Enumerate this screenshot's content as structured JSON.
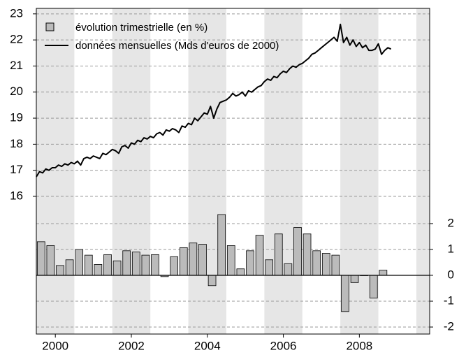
{
  "chart_data": {
    "type": "combo",
    "xlim": [
      2000,
      2010.35
    ],
    "xticks": [
      {
        "value": 2000.5,
        "label": "2000"
      },
      {
        "value": 2002.5,
        "label": "2002"
      },
      {
        "value": 2004.5,
        "label": "2004"
      },
      {
        "value": 2006.5,
        "label": "2006"
      },
      {
        "value": 2008.5,
        "label": "2008"
      }
    ],
    "ylim": [
      10.72,
      23.21
    ],
    "yticks": [
      16,
      17,
      18,
      19,
      20,
      21,
      22,
      23
    ],
    "y2lim": [
      -2.27,
      10.32
    ],
    "y2ticks": [
      -2,
      -1,
      0,
      1,
      2
    ],
    "grid": true,
    "legend": "top-left",
    "series": [
      {
        "name": "évolution trimestrielle (en %)",
        "type": "bar",
        "axis": "y2",
        "color": "#bbbbbb",
        "x": [
          2000.125,
          2000.375,
          2000.625,
          2000.875,
          2001.125,
          2001.375,
          2001.625,
          2001.875,
          2002.125,
          2002.375,
          2002.625,
          2002.875,
          2003.125,
          2003.375,
          2003.625,
          2003.875,
          2004.125,
          2004.375,
          2004.625,
          2004.875,
          2005.125,
          2005.375,
          2005.625,
          2005.875,
          2006.125,
          2006.375,
          2006.625,
          2006.875,
          2007.125,
          2007.375,
          2007.625,
          2007.875,
          2008.125,
          2008.375,
          2008.625,
          2008.875,
          2009.125
        ],
        "values": [
          1.3,
          1.15,
          0.38,
          0.6,
          1.0,
          0.78,
          0.42,
          0.8,
          0.56,
          0.95,
          0.9,
          0.78,
          0.8,
          -0.05,
          0.72,
          1.07,
          1.25,
          1.2,
          -0.4,
          2.35,
          1.15,
          0.25,
          0.95,
          1.55,
          0.6,
          1.6,
          0.45,
          1.85,
          1.6,
          0.95,
          0.85,
          0.78,
          -1.4,
          -0.28,
          0,
          -0.88,
          0.2
        ]
      },
      {
        "name": "données mensuelles (Mds d'euros de 2000)",
        "type": "line",
        "color": "#000000",
        "x": [
          2000,
          2000.083,
          2000.167,
          2000.25,
          2000.333,
          2000.417,
          2000.5,
          2000.583,
          2000.667,
          2000.75,
          2000.833,
          2000.917,
          2001,
          2001.083,
          2001.167,
          2001.25,
          2001.333,
          2001.417,
          2001.5,
          2001.583,
          2001.667,
          2001.75,
          2001.833,
          2001.917,
          2002,
          2002.083,
          2002.167,
          2002.25,
          2002.333,
          2002.417,
          2002.5,
          2002.583,
          2002.667,
          2002.75,
          2002.833,
          2002.917,
          2003,
          2003.083,
          2003.167,
          2003.25,
          2003.333,
          2003.417,
          2003.5,
          2003.583,
          2003.667,
          2003.75,
          2003.833,
          2003.917,
          2004,
          2004.083,
          2004.167,
          2004.25,
          2004.333,
          2004.417,
          2004.5,
          2004.583,
          2004.667,
          2004.75,
          2004.833,
          2004.917,
          2005,
          2005.083,
          2005.167,
          2005.25,
          2005.333,
          2005.417,
          2005.5,
          2005.583,
          2005.667,
          2005.75,
          2005.833,
          2005.917,
          2006,
          2006.083,
          2006.167,
          2006.25,
          2006.333,
          2006.417,
          2006.5,
          2006.583,
          2006.667,
          2006.75,
          2006.833,
          2006.917,
          2007,
          2007.083,
          2007.167,
          2007.25,
          2007.333,
          2007.417,
          2007.5,
          2007.583,
          2007.667,
          2007.75,
          2007.833,
          2007.917,
          2008,
          2008.083,
          2008.167,
          2008.25,
          2008.333,
          2008.417,
          2008.5,
          2008.583,
          2008.667,
          2008.75,
          2008.833,
          2008.917,
          2009,
          2009.083,
          2009.167,
          2009.25,
          2009.333
        ],
        "values": [
          16.75,
          16.95,
          16.9,
          17.05,
          17.0,
          17.1,
          17.1,
          17.2,
          17.15,
          17.25,
          17.2,
          17.3,
          17.25,
          17.35,
          17.2,
          17.45,
          17.5,
          17.45,
          17.55,
          17.5,
          17.45,
          17.65,
          17.6,
          17.7,
          17.8,
          17.75,
          17.65,
          17.9,
          17.95,
          17.85,
          18.05,
          18.0,
          18.15,
          18.1,
          18.25,
          18.2,
          18.3,
          18.25,
          18.4,
          18.45,
          18.35,
          18.55,
          18.5,
          18.6,
          18.55,
          18.45,
          18.7,
          18.65,
          18.8,
          18.75,
          19.0,
          18.9,
          19.05,
          19.2,
          19.15,
          19.45,
          19.0,
          19.35,
          19.6,
          19.65,
          19.7,
          19.8,
          19.95,
          19.85,
          19.9,
          20.0,
          19.85,
          20.05,
          20.0,
          20.1,
          20.2,
          20.25,
          20.4,
          20.5,
          20.45,
          20.6,
          20.55,
          20.7,
          20.8,
          20.75,
          20.9,
          21.0,
          20.95,
          21.05,
          21.1,
          21.2,
          21.3,
          21.45,
          21.5,
          21.6,
          21.7,
          21.8,
          21.9,
          22.0,
          22.1,
          21.95,
          22.6,
          21.9,
          22.1,
          21.8,
          22.0,
          21.75,
          21.9,
          21.7,
          21.8,
          21.6,
          21.6,
          21.65,
          21.85,
          21.45,
          21.6,
          21.7,
          21.65
        ]
      }
    ]
  }
}
